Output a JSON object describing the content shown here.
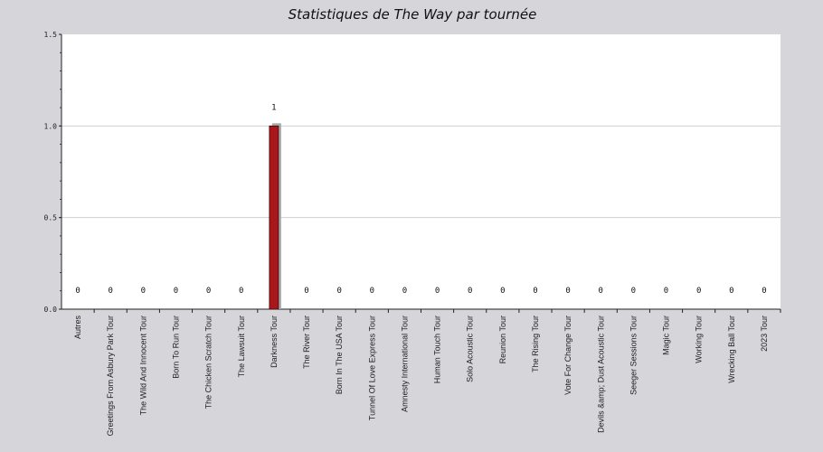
{
  "chart_data": {
    "type": "bar",
    "title": "Statistiques de The Way par tournée",
    "xlabel": "",
    "ylabel": "",
    "ylim": [
      0,
      1.5
    ],
    "yticks": [
      "0.0",
      "0.5",
      "1.0",
      "1.5"
    ],
    "grid": true,
    "categories": [
      "Autres",
      "Greetings From Asbury Park Tour",
      "The Wild And Innocent Tour",
      "Born To Run Tour",
      "The Chicken Scratch Tour",
      "The Lawsuit Tour",
      "Darkness Tour",
      "The River Tour",
      "Born In The USA Tour",
      "Tunnel Of Love Express Tour",
      "Amnesty International Tour",
      "Human Touch Tour",
      "Solo Acoustic Tour",
      "Reunion Tour",
      "The Rising Tour",
      "Vote For Change Tour",
      "Devils &amp; Dust Acoustic Tour",
      "Seeger Sessions Tour",
      "Magic Tour",
      "Working Tour",
      "Wrecking Ball Tour",
      "2023 Tour"
    ],
    "values": [
      0,
      0,
      0,
      0,
      0,
      0,
      1,
      0,
      0,
      0,
      0,
      0,
      0,
      0,
      0,
      0,
      0,
      0,
      0,
      0,
      0,
      0
    ],
    "bar_color": "#a8171a",
    "shadow_color": "#a9a9ad",
    "plot_background": "#ffffff",
    "page_background": "#d6d5d9",
    "grid_color": "#cfcfcf"
  }
}
